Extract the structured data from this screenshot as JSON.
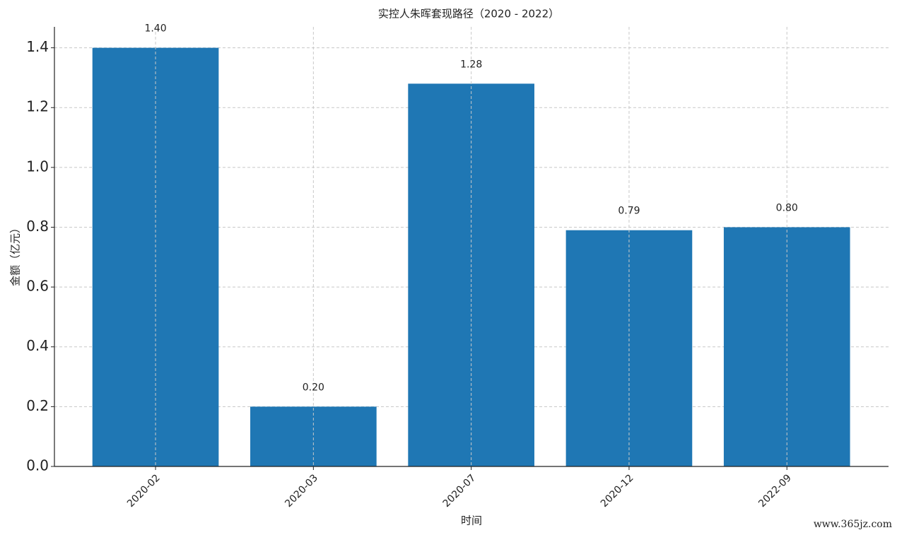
{
  "chart_data": {
    "type": "bar",
    "title": "实控人朱晖套现路径（2020 - 2022）",
    "x_label": "时间",
    "y_label": "金额（亿元）",
    "categories": [
      "2020-02",
      "2020-03",
      "2020-07",
      "2020-12",
      "2022-09"
    ],
    "values": [
      1.4,
      0.2,
      1.28,
      0.79,
      0.8
    ],
    "value_labels": [
      "1.40",
      "0.20",
      "1.28",
      "0.79",
      "0.80"
    ],
    "color": "#1f77b4",
    "ylim": [
      0,
      1.47
    ],
    "yticks": [
      {
        "value": 0,
        "label": "0.0"
      },
      0.2,
      0.4,
      0.6,
      0.8,
      {
        "value": 1,
        "label": "1.0"
      },
      1.2,
      1.4
    ],
    "grid": true,
    "watermark": "www.365jz.com"
  }
}
